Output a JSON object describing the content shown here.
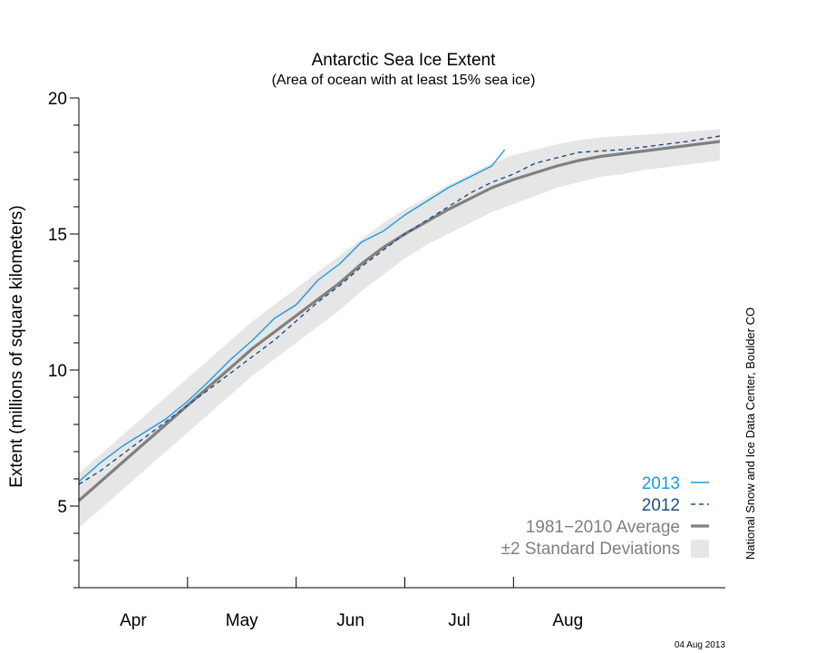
{
  "chart_data": {
    "type": "line",
    "title": "Antarctic Sea Ice Extent",
    "subtitle": "(Area of ocean with at least 15% sea ice)",
    "ylabel": "Extent (millions of square kilometers)",
    "xlabel": "",
    "ylim": [
      2,
      20
    ],
    "y_ticks": [
      5,
      10,
      15,
      20
    ],
    "x_unit": "month",
    "xlim": [
      3.0,
      8.95
    ],
    "month_labels": [
      {
        "label": "Apr",
        "x": 3.5
      },
      {
        "label": "May",
        "x": 4.5
      },
      {
        "label": "Jun",
        "x": 5.5
      },
      {
        "label": "Jul",
        "x": 6.5
      },
      {
        "label": "Aug",
        "x": 7.5
      }
    ],
    "major_x_ticks": [
      4,
      5,
      6,
      7
    ],
    "grid": false,
    "legend_position": "bottom-right",
    "colors": {
      "y2013": "#1a9be6",
      "y2012": "#1f4f82",
      "average": "#808080",
      "stddev_band": "#e6e6e6",
      "axis": "#000000"
    },
    "series": [
      {
        "name": "2013",
        "style": "solid",
        "x": [
          3.0,
          3.2,
          3.4,
          3.6,
          3.8,
          4.0,
          4.2,
          4.4,
          4.6,
          4.8,
          5.0,
          5.2,
          5.4,
          5.6,
          5.8,
          6.0,
          6.2,
          6.4,
          6.6,
          6.8,
          6.92
        ],
        "y": [
          5.9,
          6.6,
          7.2,
          7.7,
          8.2,
          8.85,
          9.6,
          10.4,
          11.1,
          11.9,
          12.4,
          13.3,
          13.9,
          14.7,
          15.1,
          15.7,
          16.2,
          16.7,
          17.1,
          17.5,
          18.1
        ]
      },
      {
        "name": "2012",
        "style": "dashed",
        "x": [
          3.0,
          3.2,
          3.4,
          3.6,
          3.8,
          4.0,
          4.2,
          4.4,
          4.6,
          4.8,
          5.0,
          5.2,
          5.4,
          5.6,
          5.8,
          6.0,
          6.2,
          6.4,
          6.6,
          6.8,
          7.0,
          7.2,
          7.4,
          7.6,
          7.8,
          8.0,
          8.2,
          8.4,
          8.6,
          8.9
        ],
        "y": [
          5.8,
          6.3,
          6.9,
          7.5,
          8.1,
          8.7,
          9.3,
          9.9,
          10.5,
          11.1,
          11.8,
          12.5,
          13.1,
          13.8,
          14.4,
          15.0,
          15.5,
          16.0,
          16.5,
          16.9,
          17.2,
          17.6,
          17.8,
          18.0,
          18.05,
          18.1,
          18.2,
          18.3,
          18.4,
          18.6
        ]
      },
      {
        "name": "1981−2010 Average",
        "style": "solid-thick",
        "x": [
          3.0,
          3.2,
          3.4,
          3.6,
          3.8,
          4.0,
          4.2,
          4.4,
          4.6,
          4.8,
          5.0,
          5.2,
          5.4,
          5.6,
          5.8,
          6.0,
          6.2,
          6.4,
          6.6,
          6.8,
          7.0,
          7.2,
          7.4,
          7.6,
          7.8,
          8.0,
          8.2,
          8.4,
          8.6,
          8.9
        ],
        "y": [
          5.2,
          5.9,
          6.6,
          7.3,
          8.0,
          8.7,
          9.4,
          10.1,
          10.8,
          11.4,
          12.0,
          12.6,
          13.2,
          13.9,
          14.5,
          15.0,
          15.45,
          15.9,
          16.3,
          16.7,
          17.0,
          17.25,
          17.5,
          17.7,
          17.85,
          17.95,
          18.05,
          18.15,
          18.25,
          18.4
        ]
      }
    ],
    "stddev_band": {
      "name": "±2 Standard Deviations",
      "x": [
        3.0,
        3.2,
        3.4,
        3.6,
        3.8,
        4.0,
        4.2,
        4.4,
        4.6,
        4.8,
        5.0,
        5.2,
        5.4,
        5.6,
        5.8,
        6.0,
        6.2,
        6.4,
        6.6,
        6.8,
        7.0,
        7.2,
        7.4,
        7.6,
        7.8,
        8.0,
        8.2,
        8.4,
        8.6,
        8.9
      ],
      "upper": [
        6.2,
        6.9,
        7.6,
        8.3,
        9.0,
        9.7,
        10.4,
        11.1,
        11.8,
        12.4,
        13.0,
        13.6,
        14.2,
        14.8,
        15.4,
        15.9,
        16.35,
        16.8,
        17.2,
        17.6,
        17.9,
        18.1,
        18.3,
        18.45,
        18.55,
        18.6,
        18.65,
        18.7,
        18.75,
        18.85
      ],
      "lower": [
        4.2,
        4.9,
        5.6,
        6.3,
        7.0,
        7.7,
        8.4,
        9.1,
        9.8,
        10.4,
        11.0,
        11.6,
        12.2,
        12.9,
        13.5,
        14.1,
        14.6,
        15.0,
        15.4,
        15.8,
        16.1,
        16.4,
        16.7,
        16.9,
        17.1,
        17.2,
        17.35,
        17.45,
        17.55,
        17.7
      ]
    },
    "credit": "National Snow and Ice Data Center, Boulder CO",
    "date_stamp": "04 Aug 2013"
  }
}
